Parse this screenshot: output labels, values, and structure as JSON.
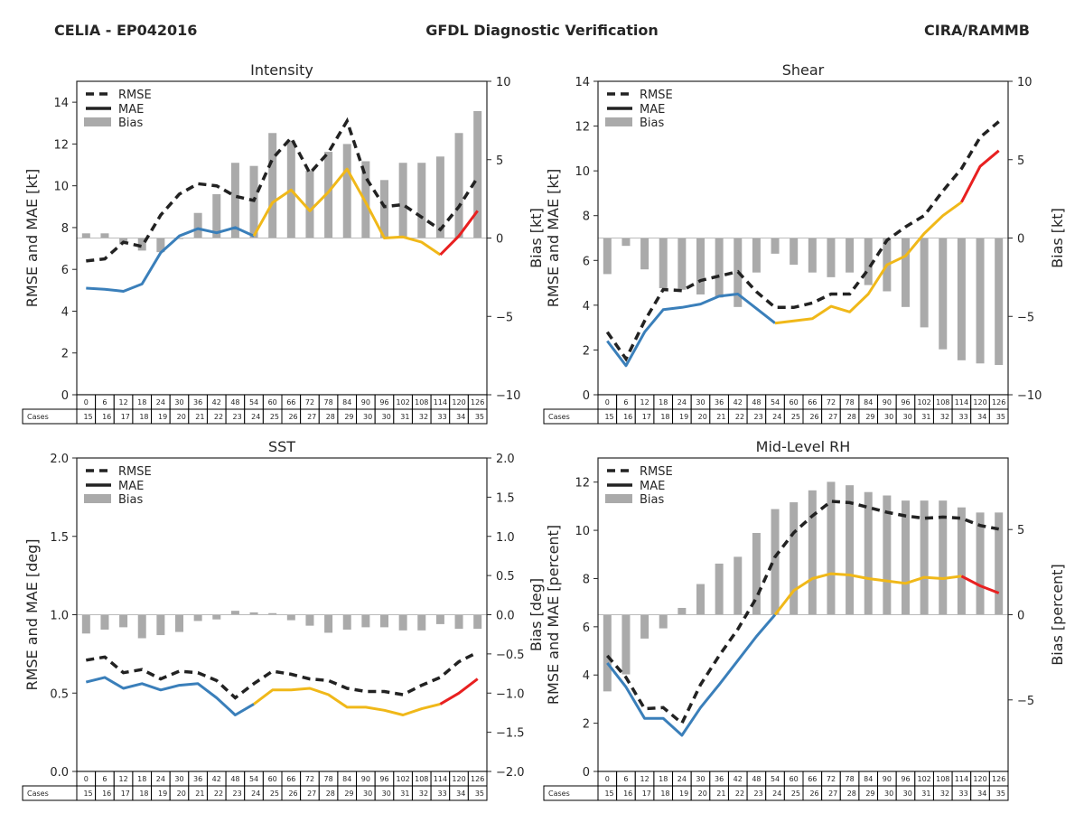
{
  "header": {
    "left": "CELIA - EP042016",
    "center": "GFDL Diagnostic Verification",
    "right": "CIRA/RAMMB"
  },
  "colors": {
    "rmse": "#222222",
    "bias_bar": "#aaaaaa",
    "segment_early": "#3a7fba",
    "segment_mid": "#f0b819",
    "segment_late": "#e82020",
    "zero_line": "#bbbbbb"
  },
  "legend": {
    "rmse": "RMSE",
    "mae": "MAE",
    "bias": "Bias"
  },
  "table": {
    "row_label": "Cases",
    "hours": [
      "0",
      "6",
      "12",
      "18",
      "24",
      "30",
      "36",
      "42",
      "48",
      "54",
      "60",
      "66",
      "72",
      "78",
      "84",
      "90",
      "96",
      "102",
      "108",
      "114",
      "120",
      "126"
    ],
    "cases": [
      "15",
      "16",
      "17",
      "18",
      "19",
      "20",
      "21",
      "22",
      "23",
      "24",
      "25",
      "26",
      "27",
      "28",
      "29",
      "30",
      "30",
      "31",
      "32",
      "33",
      "34",
      "35"
    ]
  },
  "chart_data": [
    {
      "type": "line",
      "title": "Intensity",
      "xlabel": "",
      "ylabel": "RMSE and MAE [kt]",
      "ylabel_right": "Bias [kt]",
      "ylim": [
        0,
        15
      ],
      "ylim_right": [
        -10,
        10
      ],
      "yticks": [
        0,
        2,
        4,
        6,
        8,
        10,
        12,
        14
      ],
      "yticks_right": [
        -10,
        -5,
        0,
        5,
        10
      ],
      "ytick_labels_right": [
        "−10",
        "−5",
        "0",
        "5",
        "10"
      ],
      "legend_position": "top-left",
      "x": [
        0,
        6,
        12,
        18,
        24,
        30,
        36,
        42,
        48,
        54,
        60,
        66,
        72,
        78,
        84,
        90,
        96,
        102,
        108,
        114,
        120,
        126
      ],
      "segments": {
        "early_end": 54,
        "mid_end": 114
      },
      "series": [
        {
          "name": "RMSE",
          "style": "dashed",
          "values": [
            6.4,
            6.5,
            7.3,
            7.1,
            8.6,
            9.6,
            10.1,
            10.0,
            9.5,
            9.3,
            11.3,
            12.3,
            10.6,
            11.6,
            13.1,
            10.4,
            9.0,
            9.1,
            8.5,
            7.9,
            9.0,
            10.4
          ]
        },
        {
          "name": "MAE",
          "style": "solid",
          "values": [
            5.1,
            5.05,
            4.95,
            5.3,
            6.8,
            7.6,
            7.95,
            7.75,
            8.0,
            7.6,
            9.2,
            9.8,
            8.8,
            9.7,
            10.8,
            9.2,
            7.5,
            7.55,
            7.3,
            6.7,
            7.6,
            8.8
          ]
        },
        {
          "name": "Bias",
          "style": "bar",
          "axis": "right",
          "values": [
            0.3,
            0.3,
            -0.4,
            -0.8,
            -0.9,
            0.0,
            1.6,
            2.8,
            4.8,
            4.6,
            6.7,
            6.2,
            4.3,
            5.5,
            6.0,
            4.9,
            3.7,
            4.8,
            4.8,
            5.2,
            6.7,
            8.1
          ]
        }
      ]
    },
    {
      "type": "line",
      "title": "Shear",
      "xlabel": "",
      "ylabel": "RMSE and MAE [kt]",
      "ylabel_right": "Bias [kt]",
      "ylim": [
        0,
        14
      ],
      "ylim_right": [
        -10,
        10
      ],
      "yticks": [
        0,
        2,
        4,
        6,
        8,
        10,
        12,
        14
      ],
      "yticks_right": [
        -10,
        -5,
        0,
        5,
        10
      ],
      "ytick_labels_right": [
        "−10",
        "−5",
        "0",
        "5",
        "10"
      ],
      "legend_position": "top-left",
      "x": [
        0,
        6,
        12,
        18,
        24,
        30,
        36,
        42,
        48,
        54,
        60,
        66,
        72,
        78,
        84,
        90,
        96,
        102,
        108,
        114,
        120,
        126
      ],
      "segments": {
        "early_end": 54,
        "mid_end": 114
      },
      "series": [
        {
          "name": "RMSE",
          "style": "dashed",
          "values": [
            2.8,
            1.6,
            3.3,
            4.7,
            4.65,
            5.1,
            5.3,
            5.5,
            4.6,
            3.9,
            3.9,
            4.1,
            4.5,
            4.5,
            5.6,
            6.9,
            7.5,
            8.0,
            9.1,
            10.1,
            11.5,
            12.2
          ]
        },
        {
          "name": "MAE",
          "style": "solid",
          "values": [
            2.4,
            1.3,
            2.8,
            3.8,
            3.9,
            4.05,
            4.4,
            4.5,
            3.85,
            3.2,
            3.3,
            3.4,
            3.95,
            3.7,
            4.5,
            5.8,
            6.2,
            7.2,
            8.0,
            8.6,
            10.2,
            10.9
          ]
        },
        {
          "name": "Bias",
          "style": "bar",
          "axis": "right",
          "values": [
            -2.3,
            -0.5,
            -2.0,
            -3.2,
            -3.3,
            -3.6,
            -3.8,
            -4.4,
            -2.2,
            -1.0,
            -1.7,
            -2.2,
            -2.5,
            -2.2,
            -3.0,
            -3.4,
            -4.4,
            -5.7,
            -7.1,
            -7.8,
            -8.0,
            -8.1
          ]
        }
      ]
    },
    {
      "type": "line",
      "title": "SST",
      "xlabel": "",
      "ylabel": "RMSE and MAE [deg]",
      "ylabel_right": "Bias [deg]",
      "ylim": [
        0,
        2
      ],
      "ylim_right": [
        -2,
        2
      ],
      "yticks": [
        0.0,
        0.5,
        1.0,
        1.5,
        2.0
      ],
      "ytick_labels": [
        "0.0",
        "0.5",
        "1.0",
        "1.5",
        "2.0"
      ],
      "yticks_right": [
        -2.0,
        -1.5,
        -1.0,
        -0.5,
        0.0,
        0.5,
        1.0,
        1.5,
        2.0
      ],
      "ytick_labels_right": [
        "−2.0",
        "−1.5",
        "−1.0",
        "−0.5",
        "0.0",
        "0.5",
        "1.0",
        "1.5",
        "2.0"
      ],
      "legend_position": "top-left",
      "x": [
        0,
        6,
        12,
        18,
        24,
        30,
        36,
        42,
        48,
        54,
        60,
        66,
        72,
        78,
        84,
        90,
        96,
        102,
        108,
        114,
        120,
        126
      ],
      "segments": {
        "early_end": 54,
        "mid_end": 114
      },
      "series": [
        {
          "name": "RMSE",
          "style": "dashed",
          "values": [
            0.71,
            0.73,
            0.63,
            0.65,
            0.59,
            0.64,
            0.63,
            0.58,
            0.47,
            0.56,
            0.64,
            0.62,
            0.59,
            0.58,
            0.53,
            0.51,
            0.51,
            0.49,
            0.55,
            0.6,
            0.7,
            0.76
          ]
        },
        {
          "name": "MAE",
          "style": "solid",
          "values": [
            0.57,
            0.6,
            0.53,
            0.56,
            0.52,
            0.55,
            0.56,
            0.47,
            0.36,
            0.43,
            0.52,
            0.52,
            0.53,
            0.49,
            0.41,
            0.41,
            0.39,
            0.36,
            0.4,
            0.43,
            0.5,
            0.59
          ]
        },
        {
          "name": "Bias",
          "style": "bar",
          "axis": "right",
          "values": [
            -0.24,
            -0.19,
            -0.16,
            -0.3,
            -0.26,
            -0.22,
            -0.08,
            -0.06,
            0.05,
            0.03,
            0.02,
            -0.07,
            -0.14,
            -0.23,
            -0.19,
            -0.16,
            -0.16,
            -0.2,
            -0.2,
            -0.12,
            -0.18,
            -0.18
          ]
        }
      ]
    },
    {
      "type": "line",
      "title": "Mid-Level RH",
      "xlabel": "",
      "ylabel": "RMSE and MAE [percent]",
      "ylabel_right": "Bias [percent]",
      "ylim": [
        0,
        13
      ],
      "ylim_right": [
        -9.2,
        9.2
      ],
      "yticks": [
        0,
        2,
        4,
        6,
        8,
        10,
        12
      ],
      "yticks_right": [
        -5,
        0,
        5
      ],
      "ytick_labels_right": [
        "−5",
        "0",
        "5"
      ],
      "legend_position": "top-left",
      "x": [
        0,
        6,
        12,
        18,
        24,
        30,
        36,
        42,
        48,
        54,
        60,
        66,
        72,
        78,
        84,
        90,
        96,
        102,
        108,
        114,
        120,
        126
      ],
      "segments": {
        "early_end": 54,
        "mid_end": 114
      },
      "series": [
        {
          "name": "RMSE",
          "style": "dashed",
          "values": [
            4.8,
            3.9,
            2.6,
            2.65,
            2.0,
            3.6,
            4.8,
            5.9,
            7.2,
            8.9,
            9.9,
            10.6,
            11.2,
            11.15,
            10.95,
            10.75,
            10.6,
            10.5,
            10.55,
            10.5,
            10.2,
            10.05
          ]
        },
        {
          "name": "MAE",
          "style": "solid",
          "values": [
            4.5,
            3.5,
            2.2,
            2.2,
            1.5,
            2.65,
            3.6,
            4.6,
            5.6,
            6.5,
            7.5,
            8.0,
            8.2,
            8.15,
            8.0,
            7.9,
            7.8,
            8.05,
            8.0,
            8.1,
            7.7,
            7.4
          ]
        },
        {
          "name": "Bias",
          "style": "bar",
          "axis": "right",
          "values": [
            -4.5,
            -3.5,
            -1.4,
            -0.8,
            0.4,
            1.8,
            3.0,
            3.4,
            4.8,
            6.2,
            6.6,
            7.3,
            7.8,
            7.6,
            7.2,
            7.0,
            6.7,
            6.7,
            6.7,
            6.3,
            6.0,
            6.0
          ]
        }
      ]
    }
  ]
}
